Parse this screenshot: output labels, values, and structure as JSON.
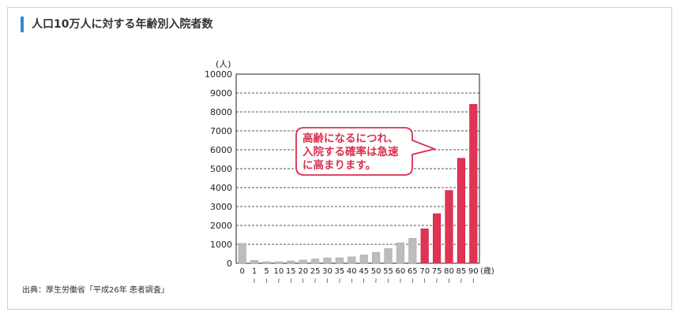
{
  "title": "人口10万人に対する年齢別入院者数",
  "source": "出典：厚生労働省「平成26年 患者調査」",
  "colors": {
    "accent": "#2a8fd0",
    "young_bar": "#bdbdbd",
    "old_bar": "#e03455"
  },
  "chart_data": {
    "type": "bar",
    "title": "",
    "ylabel": "(人)",
    "xlabel": "(歳)",
    "ylim": [
      0,
      10000
    ],
    "yticks": [
      0,
      1000,
      2000,
      3000,
      4000,
      5000,
      6000,
      7000,
      8000,
      9000,
      10000
    ],
    "grid": true,
    "categories": [
      "0",
      "1",
      "5",
      "10",
      "15",
      "20",
      "25",
      "30",
      "35",
      "40",
      "45",
      "50",
      "55",
      "60",
      "65",
      "70",
      "75",
      "80",
      "85",
      "90"
    ],
    "range_mark": "~",
    "values": [
      1050,
      150,
      80,
      80,
      120,
      170,
      230,
      280,
      290,
      340,
      440,
      580,
      780,
      1080,
      1320,
      1820,
      2620,
      3850,
      5550,
      8400
    ],
    "highlight_from_index": 15,
    "annotation": [
      "高齢になるにつれ、",
      "入院する確率は急速",
      "に高まります。"
    ]
  }
}
